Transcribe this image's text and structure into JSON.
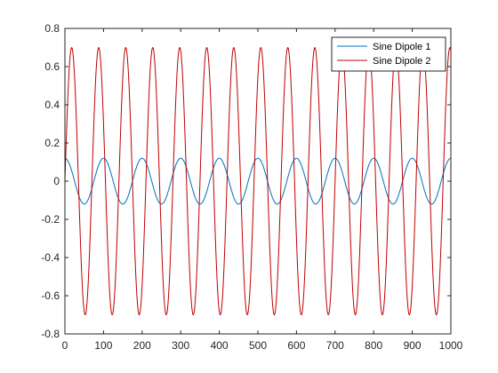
{
  "chart_data": {
    "type": "line",
    "title": "",
    "xlabel": "",
    "ylabel": "",
    "xlim": [
      0,
      1000
    ],
    "ylim": [
      -0.8,
      0.8
    ],
    "xticks": [
      "0",
      "100",
      "200",
      "300",
      "400",
      "500",
      "600",
      "700",
      "800",
      "900",
      "1000"
    ],
    "yticks": [
      "0.8",
      "0.6",
      "0.4",
      "0.2",
      "0",
      "-0.2",
      "-0.4",
      "-0.6",
      "-0.8"
    ],
    "grid": false,
    "legend": {
      "position": "top-right",
      "entries": [
        "Sine Dipole 1",
        "Sine Dipole 2"
      ]
    },
    "series": [
      {
        "name": "Sine Dipole 1",
        "color": "#0072BD",
        "function": "sine",
        "amplitude": 0.12,
        "period": 100,
        "value_at_x0": 0.12,
        "x_range": [
          0,
          1000
        ]
      },
      {
        "name": "Sine Dipole 2",
        "color": "#C00000",
        "function": "sine",
        "amplitude": 0.7,
        "period": 70,
        "value_at_x0": 0.0,
        "x_range": [
          0,
          1000
        ]
      }
    ]
  }
}
